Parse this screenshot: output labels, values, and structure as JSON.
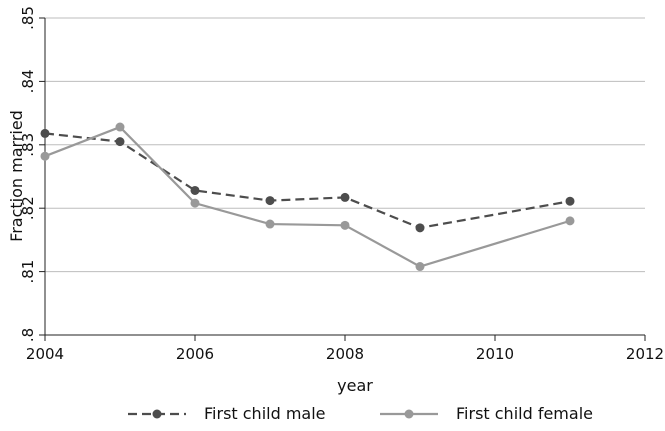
{
  "chart_data": {
    "type": "line",
    "title": "",
    "xlabel": "year",
    "ylabel": "Fraction married",
    "xlim": [
      2004,
      2012
    ],
    "ylim": [
      0.8,
      0.85
    ],
    "x_ticks": [
      {
        "value": 2004,
        "label": "2004"
      },
      {
        "value": 2006,
        "label": "2006"
      },
      {
        "value": 2008,
        "label": "2008"
      },
      {
        "value": 2010,
        "label": "2010"
      },
      {
        "value": 2012,
        "label": "2012"
      }
    ],
    "y_ticks": [
      {
        "value": 0.8,
        "label": ".8"
      },
      {
        "value": 0.81,
        "label": ".81"
      },
      {
        "value": 0.82,
        "label": ".82"
      },
      {
        "value": 0.83,
        "label": ".83"
      },
      {
        "value": 0.84,
        "label": ".84"
      },
      {
        "value": 0.85,
        "label": ".85"
      }
    ],
    "grid": "horizontal",
    "legend_position": "bottom",
    "series": [
      {
        "name": "First child male",
        "color": "#4d4d4d",
        "dash": "dashed",
        "x": [
          2004,
          2005,
          2006,
          2007,
          2008,
          2009,
          2011
        ],
        "y": [
          0.8318,
          0.8305,
          0.8228,
          0.8212,
          0.8217,
          0.8169,
          0.8211
        ]
      },
      {
        "name": "First child female",
        "color": "#999999",
        "dash": "solid",
        "x": [
          2004,
          2005,
          2006,
          2007,
          2008,
          2009,
          2011
        ],
        "y": [
          0.8282,
          0.8328,
          0.8208,
          0.8175,
          0.8173,
          0.8108,
          0.818
        ]
      }
    ]
  }
}
